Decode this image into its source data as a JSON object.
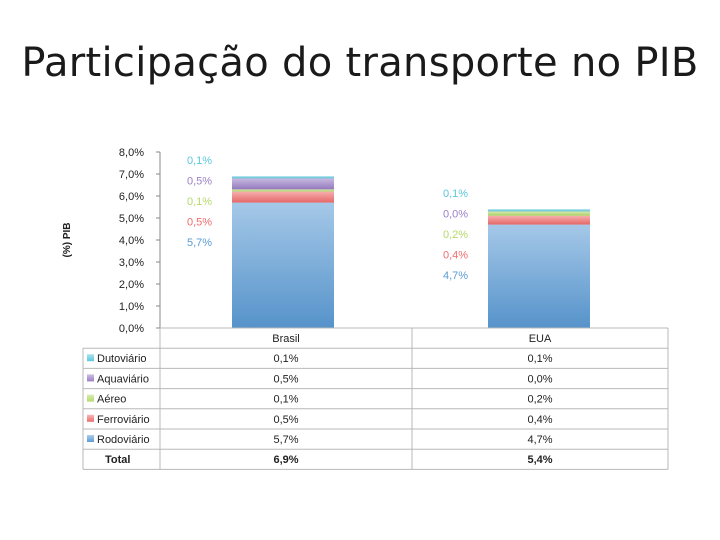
{
  "slide": {
    "title": "Participação do transporte no PIB"
  },
  "chart_data": {
    "type": "bar",
    "stacked": true,
    "categories": [
      "Brasil",
      "EUA"
    ],
    "ylabel": "(%) PIB",
    "ylim": [
      0,
      8
    ],
    "y_ticks": [
      "0,0%",
      "1,0%",
      "2,0%",
      "3,0%",
      "4,0%",
      "5,0%",
      "6,0%",
      "7,0%",
      "8,0%"
    ],
    "series": [
      {
        "name": "Rodoviário",
        "values": [
          5.7,
          4.7
        ],
        "labels": [
          "5,7%",
          "4,7%"
        ],
        "color": "#5b9bd5"
      },
      {
        "name": "Ferroviário",
        "values": [
          0.5,
          0.4
        ],
        "labels": [
          "0,5%",
          "0,4%"
        ],
        "color": "#f06c6c"
      },
      {
        "name": "Aéreo",
        "values": [
          0.1,
          0.2
        ],
        "labels": [
          "0,1%",
          "0,2%"
        ],
        "color": "#b5d96a"
      },
      {
        "name": "Aquaviário",
        "values": [
          0.5,
          0.0
        ],
        "labels": [
          "0,5%",
          "0,0%"
        ],
        "color": "#9b7fc6"
      },
      {
        "name": "Dutoviário",
        "values": [
          0.1,
          0.1
        ],
        "labels": [
          "0,1%",
          "0,1%"
        ],
        "color": "#5ac8dc"
      }
    ],
    "table": {
      "legend_order": [
        "Dutoviário",
        "Aquaviário",
        "Aéreo",
        "Ferroviário",
        "Rodoviário"
      ],
      "total_label": "Total",
      "totals": [
        "6,9%",
        "5,4%"
      ]
    },
    "grid": false
  }
}
